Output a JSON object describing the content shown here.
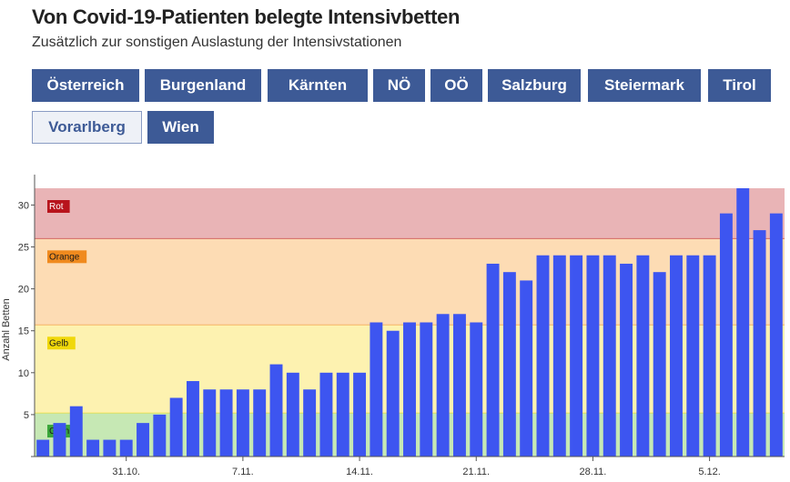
{
  "title": "Von Covid-19-Patienten belegte Intensivbetten",
  "subtitle": "Zusätzlich zur sonstigen Auslastung der Intensivstationen",
  "tabs": [
    {
      "label": "Österreich",
      "active": false
    },
    {
      "label": "Burgenland",
      "active": false
    },
    {
      "label": "Kärnten",
      "active": false
    },
    {
      "label": "NÖ",
      "active": false
    },
    {
      "label": "OÖ",
      "active": false
    },
    {
      "label": "Salzburg",
      "active": false
    },
    {
      "label": "Steiermark",
      "active": false
    },
    {
      "label": "Tirol",
      "active": false
    },
    {
      "label": "Vorarlberg",
      "active": true
    },
    {
      "label": "Wien",
      "active": false
    }
  ],
  "colors": {
    "bar": "#3d55f0",
    "zone_gruen": "#c6e8b4",
    "zone_gelb": "#fdf2b0",
    "zone_orange": "#fddcb4",
    "zone_rot": "#e9b4b6",
    "label_gruen": "#3aa63a",
    "label_gelb": "#f0d80a",
    "label_orange": "#f08a1e",
    "label_rot": "#b8141c",
    "tab": "#3d5a96"
  },
  "chart_data": {
    "type": "bar",
    "ylabel": "Anzahl Betten",
    "ylim": [
      0,
      32
    ],
    "yticks": [
      0,
      5,
      10,
      15,
      20,
      25,
      30
    ],
    "xticks": [
      {
        "label": "31.10.",
        "index": 5
      },
      {
        "label": "7.11.",
        "index": 12
      },
      {
        "label": "14.11.",
        "index": 19
      },
      {
        "label": "21.11.",
        "index": 26
      },
      {
        "label": "28.11.",
        "index": 33
      },
      {
        "label": "5.12.",
        "index": 40
      }
    ],
    "zones": [
      {
        "name": "Grün",
        "from": 0,
        "to": 5.2
      },
      {
        "name": "Gelb",
        "from": 5.2,
        "to": 15.7
      },
      {
        "name": "Orange",
        "from": 15.7,
        "to": 26
      },
      {
        "name": "Rot",
        "from": 26,
        "to": 32
      }
    ],
    "values": [
      2,
      4,
      6,
      2,
      2,
      2,
      4,
      5,
      7,
      9,
      8,
      8,
      8,
      8,
      11,
      10,
      8,
      10,
      10,
      10,
      16,
      15,
      16,
      16,
      17,
      17,
      16,
      23,
      22,
      21,
      24,
      24,
      24,
      24,
      24,
      23,
      24,
      22,
      24,
      24,
      24,
      29,
      32,
      27,
      29
    ]
  }
}
